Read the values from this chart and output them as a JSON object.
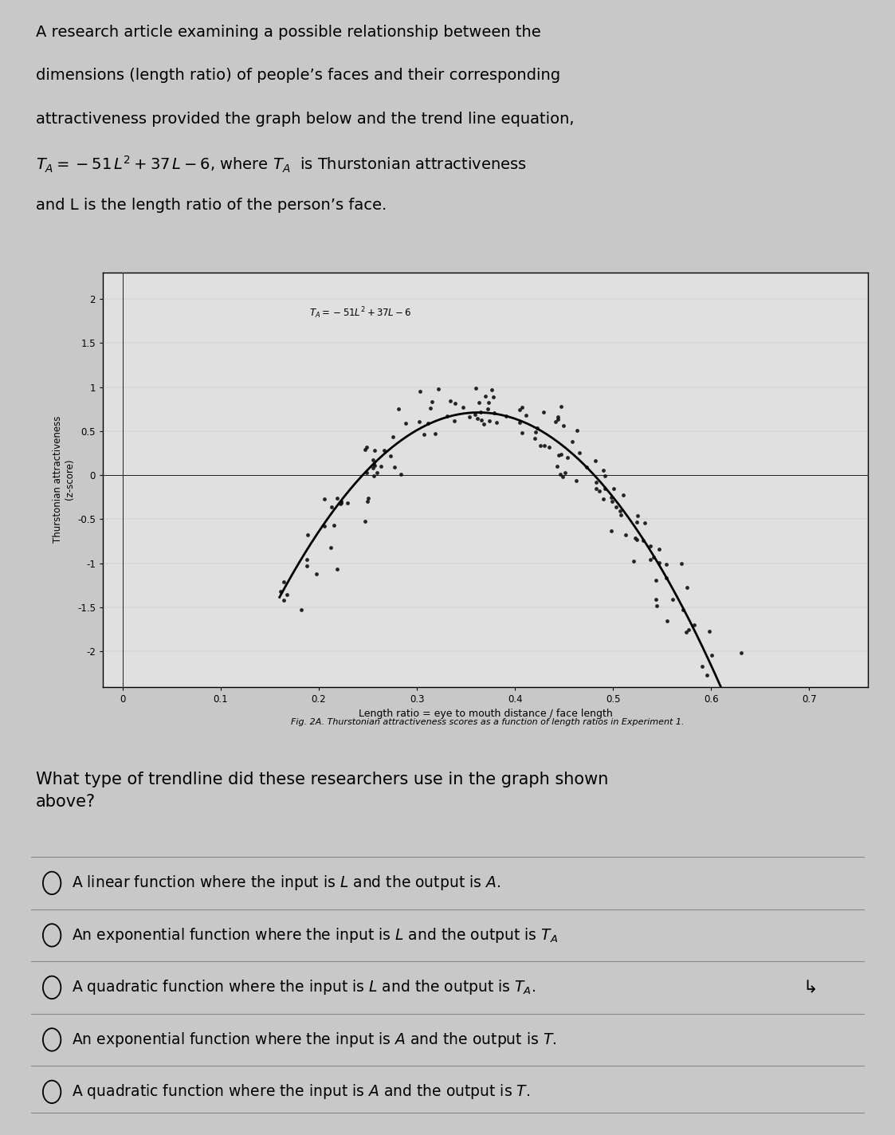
{
  "bg_color": "#c8c8c8",
  "graph_bg": "#e0e0e0",
  "paragraph_lines": [
    "A research article examining a possible relationship between the",
    "dimensions (length ratio) of people’s faces and their corresponding",
    "attractiveness provided the graph below and the trend line equation,",
    "$T_A = -51\\,L^2 + 37\\,L - 6$, where $T_A$  is Thurstonian attractiveness",
    "and L is the length ratio of the person’s face."
  ],
  "graph_annotation": "$T_A = -51L^2 + 37L - 6$",
  "graph_xlabel": "Length ratio = eye to mouth distance / face length",
  "graph_ylabel": "Thurstonian attractiveness\n(z-score)",
  "graph_caption": "Fig. 2A. Thurstonian attractiveness scores as a function of length ratios in Experiment 1.",
  "graph_yticks": [
    -2,
    -1.5,
    -1,
    -0.5,
    0,
    0.5,
    1,
    1.5,
    2
  ],
  "graph_xticks": [
    0,
    0.1,
    0.2,
    0.3,
    0.4,
    0.5,
    0.6,
    0.7
  ],
  "graph_xlim": [
    -0.02,
    0.76
  ],
  "graph_ylim": [
    -2.4,
    2.3
  ],
  "curve_color": "#000000",
  "dot_color": "#111111",
  "question_text": "What type of trendline did these researchers use in the graph shown\nabove?",
  "options": [
    "A linear function where the input is $L$ and the output is $A$.",
    "An exponential function where the input is $L$ and the output is $T_A$",
    "A quadratic function where the input is $L$ and the output is $T_A$.",
    "An exponential function where the input is $A$ and the output is $T$.",
    "A quadratic function where the input is $A$ and the output is $T$."
  ],
  "scatter_seed": 42
}
